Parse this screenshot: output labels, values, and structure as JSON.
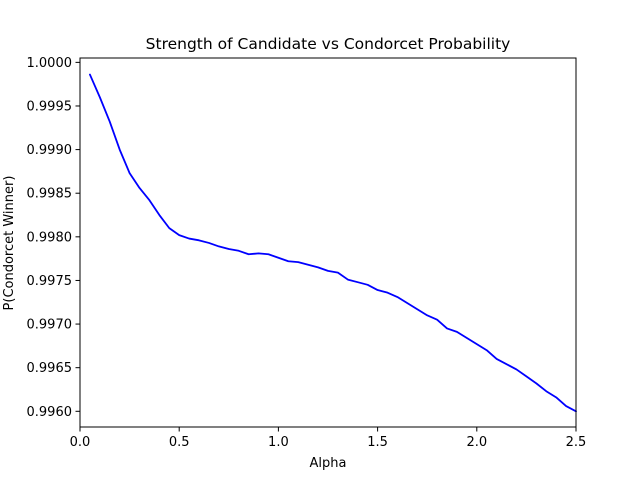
{
  "chart_data": {
    "type": "line",
    "title": "Strength of Candidate vs Condorcet Probability",
    "xlabel": "Alpha",
    "ylabel": "P(Condorcet Winner)",
    "xlim": [
      0.0,
      2.5
    ],
    "ylim": [
      0.99582,
      1.00005
    ],
    "x_ticks": [
      0.0,
      0.5,
      1.0,
      1.5,
      2.0,
      2.5
    ],
    "x_tick_labels": [
      "0.0",
      "0.5",
      "1.0",
      "1.5",
      "2.0",
      "2.5"
    ],
    "y_ticks": [
      0.996,
      0.9965,
      0.997,
      0.9975,
      0.998,
      0.9985,
      0.999,
      0.9995,
      1.0
    ],
    "y_tick_labels": [
      "0.9960",
      "0.9965",
      "0.9970",
      "0.9975",
      "0.9980",
      "0.9985",
      "0.9990",
      "0.9995",
      "1.0000"
    ],
    "grid": false,
    "legend": "none",
    "line_color": "#0000ff",
    "series": [
      {
        "x": [
          0.05,
          0.1,
          0.15,
          0.2,
          0.25,
          0.3,
          0.35,
          0.4,
          0.45,
          0.5,
          0.55,
          0.6,
          0.65,
          0.7,
          0.75,
          0.8,
          0.85,
          0.9,
          0.95,
          1.0,
          1.05,
          1.1,
          1.15,
          1.2,
          1.25,
          1.3,
          1.35,
          1.4,
          1.45,
          1.5,
          1.55,
          1.6,
          1.65,
          1.7,
          1.75,
          1.8,
          1.85,
          1.9,
          1.95,
          2.0,
          2.05,
          2.1,
          2.15,
          2.2,
          2.25,
          2.3,
          2.35,
          2.4,
          2.45,
          2.5
        ],
        "values": [
          0.99986,
          0.9996,
          0.99932,
          0.999,
          0.99873,
          0.99856,
          0.99842,
          0.99825,
          0.9981,
          0.99802,
          0.99798,
          0.99796,
          0.99793,
          0.99789,
          0.99786,
          0.99784,
          0.9978,
          0.99781,
          0.9978,
          0.99776,
          0.99772,
          0.99771,
          0.99768,
          0.99765,
          0.99761,
          0.99759,
          0.99751,
          0.99748,
          0.99745,
          0.99739,
          0.99736,
          0.99731,
          0.99724,
          0.99717,
          0.9971,
          0.99705,
          0.99695,
          0.99691,
          0.99684,
          0.99677,
          0.9967,
          0.9966,
          0.99654,
          0.99648,
          0.9964,
          0.99632,
          0.99623,
          0.99616,
          0.99606,
          0.996
        ]
      }
    ]
  }
}
